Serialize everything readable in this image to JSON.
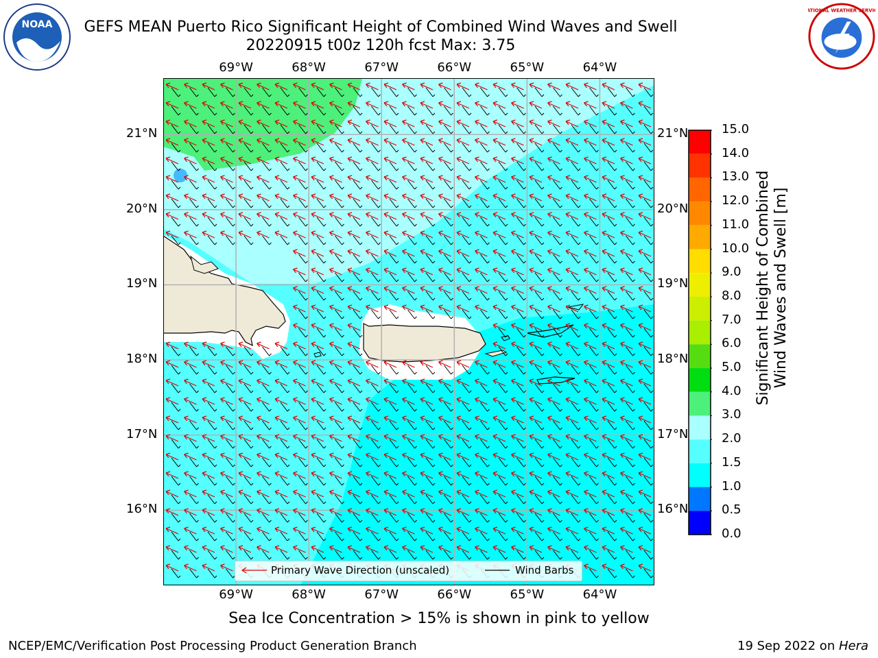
{
  "title": {
    "line1": "GEFS MEAN Puerto Rico Significant Height of Combined Wind Waves and Swell",
    "line2": "20220915 t00z 120h fcst   Max: 3.75"
  },
  "logos": {
    "noaa_text": "NOAA",
    "nws_text": "NATIONAL WEATHER SERVICE"
  },
  "map": {
    "lon_ticks": [
      "69°W",
      "68°W",
      "67°W",
      "66°W",
      "65°W",
      "64°W"
    ],
    "lat_ticks": [
      "21°N",
      "20°N",
      "19°N",
      "18°N",
      "17°N",
      "16°N"
    ],
    "lon_range": [
      -70.0,
      -63.25
    ],
    "lat_range": [
      15.0,
      21.75
    ],
    "colors": {
      "land": "#efead8",
      "ice_free_shelf": "#ffffff",
      "band_1_0_to_1_5": "#00ffff",
      "band_1_5_to_2_0": "#55ffff",
      "band_2_0_to_3_0": "#aaffff",
      "band_3_0_to_4_0": "#4cf07a",
      "wave_arrow": "#e00000",
      "wind_barb": "#000000",
      "grid": "#b0b0b0"
    },
    "wave_direction": "toward west-northwest",
    "wind_barbs": "easterly, short barbs"
  },
  "legend": {
    "wave_label": "Primary Wave Direction (unscaled)",
    "barb_label": "Wind Barbs"
  },
  "colorbar": {
    "title_line1": "Significant Height of Combined",
    "title_line2": "Wind Waves and Swell [m]",
    "ticks": [
      "15.0",
      "14.0",
      "13.0",
      "12.0",
      "11.0",
      "10.0",
      "9.0",
      "8.0",
      "7.0",
      "6.0",
      "5.0",
      "4.0",
      "3.0",
      "2.0",
      "1.5",
      "1.0",
      "0.5",
      "0.0"
    ],
    "bands": [
      {
        "from": 14.0,
        "to": 15.0,
        "color": "#ff0000"
      },
      {
        "from": 13.0,
        "to": 14.0,
        "color": "#ff3300"
      },
      {
        "from": 12.0,
        "to": 13.0,
        "color": "#ff6600"
      },
      {
        "from": 11.0,
        "to": 12.0,
        "color": "#ff8800"
      },
      {
        "from": 10.0,
        "to": 11.0,
        "color": "#ffaa00"
      },
      {
        "from": 9.0,
        "to": 10.0,
        "color": "#ffdd00"
      },
      {
        "from": 8.0,
        "to": 9.0,
        "color": "#eeee00"
      },
      {
        "from": 7.0,
        "to": 8.0,
        "color": "#ccee00"
      },
      {
        "from": 6.0,
        "to": 7.0,
        "color": "#aaee00"
      },
      {
        "from": 5.0,
        "to": 6.0,
        "color": "#55dd11"
      },
      {
        "from": 4.0,
        "to": 5.0,
        "color": "#00dd11"
      },
      {
        "from": 3.0,
        "to": 4.0,
        "color": "#4cf07a"
      },
      {
        "from": 2.0,
        "to": 3.0,
        "color": "#aaffff"
      },
      {
        "from": 1.5,
        "to": 2.0,
        "color": "#55ffff"
      },
      {
        "from": 1.0,
        "to": 1.5,
        "color": "#00ffff"
      },
      {
        "from": 0.5,
        "to": 1.0,
        "color": "#0077ff"
      },
      {
        "from": 0.0,
        "to": 0.5,
        "color": "#0000ff"
      }
    ]
  },
  "footer": {
    "note": "Sea Ice Concentration > 15% is shown in pink to yellow",
    "credit_left": "NCEP/EMC/Verification Post Processing Product Generation Branch",
    "credit_right_prefix": "19 Sep 2022 on ",
    "credit_right_host": "Hera"
  }
}
